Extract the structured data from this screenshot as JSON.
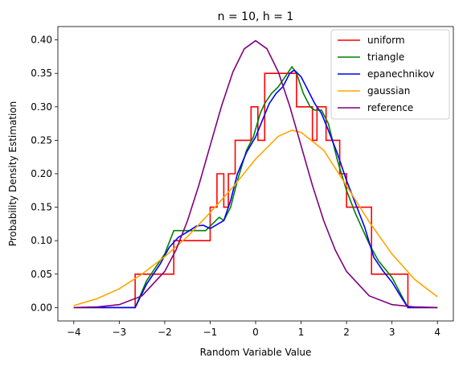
{
  "chart_data": {
    "type": "line",
    "title": "n = 10, h = 1",
    "xlabel": "Random Variable Value",
    "ylabel": "Probability Density Estimation",
    "xlim": [
      -4.35,
      4.35
    ],
    "ylim": [
      -0.02,
      0.42
    ],
    "xticks": [
      -4,
      -3,
      -2,
      -1,
      0,
      1,
      2,
      3,
      4
    ],
    "yticks": [
      0.0,
      0.05,
      0.1,
      0.15,
      0.2,
      0.25,
      0.3,
      0.35,
      0.4
    ],
    "xtick_labels": [
      "−4",
      "−3",
      "−2",
      "−1",
      "0",
      "1",
      "2",
      "3",
      "4"
    ],
    "ytick_labels": [
      "0.00",
      "0.05",
      "0.10",
      "0.15",
      "0.20",
      "0.25",
      "0.30",
      "0.35",
      "0.40"
    ],
    "grid": false,
    "legend_position": "top-right",
    "series": [
      {
        "name": "uniform",
        "color": "#ff0000",
        "step": true,
        "x": [
          -4.0,
          -2.65,
          -2.65,
          -1.8,
          -1.8,
          -1.25,
          -1.25,
          -1.0,
          -1.0,
          -0.85,
          -0.85,
          -0.7,
          -0.7,
          -0.6,
          -0.6,
          -0.45,
          -0.45,
          -0.1,
          -0.1,
          0.05,
          0.05,
          0.2,
          0.2,
          0.55,
          0.55,
          0.9,
          0.9,
          1.25,
          1.25,
          1.35,
          1.35,
          1.55,
          1.55,
          1.85,
          1.85,
          2.0,
          2.0,
          2.55,
          2.55,
          3.35,
          3.35,
          4.0
        ],
        "y": [
          0.0,
          0.0,
          0.05,
          0.05,
          0.1,
          0.1,
          0.1,
          0.1,
          0.15,
          0.15,
          0.2,
          0.2,
          0.15,
          0.15,
          0.2,
          0.2,
          0.25,
          0.25,
          0.3,
          0.3,
          0.25,
          0.25,
          0.35,
          0.35,
          0.35,
          0.35,
          0.3,
          0.3,
          0.25,
          0.25,
          0.3,
          0.3,
          0.25,
          0.25,
          0.2,
          0.2,
          0.15,
          0.15,
          0.05,
          0.05,
          0.0,
          0.0
        ]
      },
      {
        "name": "triangle",
        "color": "#008000",
        "step": false,
        "x": [
          -4.0,
          -2.65,
          -2.4,
          -2.0,
          -1.8,
          -1.6,
          -1.3,
          -1.1,
          -0.95,
          -0.8,
          -0.7,
          -0.55,
          -0.4,
          -0.2,
          -0.05,
          0.1,
          0.2,
          0.35,
          0.5,
          0.65,
          0.8,
          0.9,
          1.05,
          1.2,
          1.3,
          1.45,
          1.6,
          1.8,
          2.0,
          2.2,
          2.5,
          2.7,
          3.0,
          3.35,
          4.0
        ],
        "y": [
          0.0,
          0.0,
          0.04,
          0.08,
          0.115,
          0.115,
          0.115,
          0.115,
          0.125,
          0.135,
          0.13,
          0.15,
          0.19,
          0.235,
          0.255,
          0.29,
          0.305,
          0.32,
          0.33,
          0.345,
          0.36,
          0.35,
          0.32,
          0.3,
          0.295,
          0.295,
          0.275,
          0.22,
          0.175,
          0.14,
          0.095,
          0.07,
          0.045,
          0.0,
          0.0
        ]
      },
      {
        "name": "epanechnikov",
        "color": "#0000ff",
        "step": false,
        "x": [
          -4.0,
          -2.65,
          -2.4,
          -2.1,
          -1.9,
          -1.7,
          -1.5,
          -1.3,
          -1.15,
          -1.0,
          -0.85,
          -0.7,
          -0.55,
          -0.4,
          -0.2,
          0.0,
          0.15,
          0.3,
          0.45,
          0.6,
          0.75,
          0.85,
          1.0,
          1.15,
          1.3,
          1.45,
          1.6,
          1.8,
          2.0,
          2.2,
          2.4,
          2.6,
          2.8,
          3.0,
          3.2,
          3.35,
          4.0
        ],
        "y": [
          0.0,
          0.0,
          0.035,
          0.065,
          0.09,
          0.105,
          0.113,
          0.122,
          0.123,
          0.118,
          0.124,
          0.13,
          0.16,
          0.2,
          0.232,
          0.255,
          0.28,
          0.305,
          0.32,
          0.33,
          0.35,
          0.355,
          0.345,
          0.325,
          0.305,
          0.29,
          0.265,
          0.23,
          0.19,
          0.155,
          0.12,
          0.075,
          0.055,
          0.038,
          0.016,
          0.0,
          0.0
        ]
      },
      {
        "name": "gaussian",
        "color": "#ffa500",
        "step": false,
        "x": [
          -4.0,
          -3.5,
          -3.0,
          -2.5,
          -2.0,
          -1.5,
          -1.0,
          -0.5,
          0.0,
          0.5,
          0.8,
          1.0,
          1.5,
          2.0,
          2.5,
          3.0,
          3.5,
          4.0
        ],
        "y": [
          0.003,
          0.013,
          0.028,
          0.05,
          0.076,
          0.106,
          0.142,
          0.18,
          0.222,
          0.256,
          0.265,
          0.262,
          0.235,
          0.182,
          0.128,
          0.08,
          0.042,
          0.016
        ]
      },
      {
        "name": "reference",
        "color": "#800080",
        "step": false,
        "x": [
          -4.0,
          -3.5,
          -3.0,
          -2.5,
          -2.0,
          -1.75,
          -1.5,
          -1.25,
          -1.0,
          -0.75,
          -0.5,
          -0.25,
          0.0,
          0.25,
          0.5,
          0.75,
          1.0,
          1.25,
          1.5,
          1.75,
          2.0,
          2.5,
          3.0,
          3.5,
          4.0
        ],
        "y": [
          0.0001,
          0.0009,
          0.0044,
          0.0175,
          0.054,
          0.0863,
          0.1295,
          0.1826,
          0.242,
          0.3011,
          0.3521,
          0.3867,
          0.3989,
          0.3867,
          0.3521,
          0.3011,
          0.242,
          0.1826,
          0.1295,
          0.0863,
          0.054,
          0.0175,
          0.0044,
          0.0009,
          0.0001
        ]
      }
    ]
  }
}
